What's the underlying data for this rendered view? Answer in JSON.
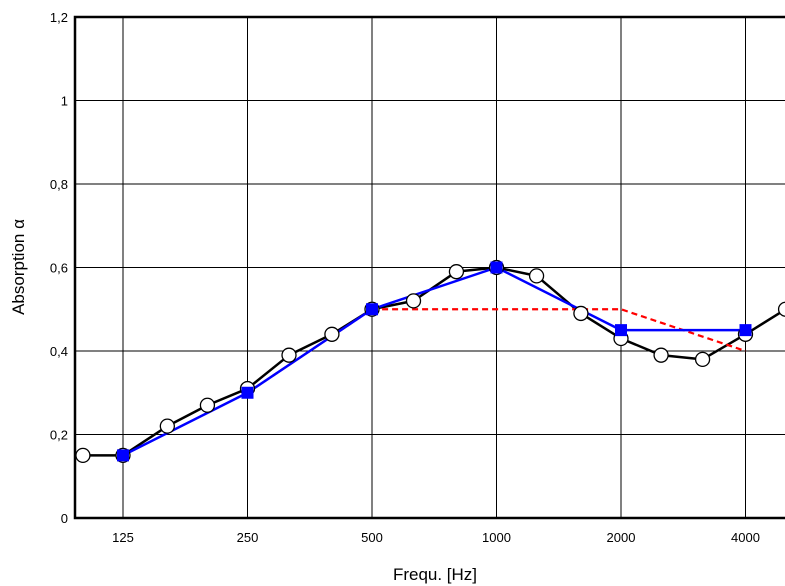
{
  "chart_data": {
    "type": "line",
    "title": "",
    "xlabel": "Frequ. [Hz]",
    "ylabel": "Absorption α",
    "x_scale": "log2",
    "x_tick_labels": [
      "125",
      "250",
      "500",
      "1000",
      "2000",
      "4000"
    ],
    "y_tick_labels": [
      "0",
      "0,2",
      "0,4",
      "0,6",
      "0,8",
      "1",
      "1,2"
    ],
    "ylim": [
      0,
      1.2
    ],
    "grid": true,
    "legend": "none",
    "series": [
      {
        "style": "black line, open circles",
        "color": "#000000",
        "x": [
          100,
          125,
          160,
          200,
          250,
          315,
          400,
          500,
          630,
          800,
          1000,
          1250,
          1600,
          2000,
          2500,
          3150,
          4000,
          5000
        ],
        "y": [
          0.15,
          0.15,
          0.22,
          0.27,
          0.31,
          0.39,
          0.44,
          0.5,
          0.52,
          0.59,
          0.6,
          0.58,
          0.49,
          0.43,
          0.39,
          0.38,
          0.44,
          0.5
        ]
      },
      {
        "style": "blue line, filled squares",
        "color": "#0000FF",
        "x": [
          125,
          250,
          500,
          1000,
          2000,
          4000
        ],
        "y": [
          0.15,
          0.3,
          0.5,
          0.6,
          0.45,
          0.45
        ]
      },
      {
        "style": "red dashed line",
        "color": "#FF0000",
        "x": [
          250,
          500,
          1000,
          2000,
          4000
        ],
        "y": [
          0.3,
          0.5,
          0.5,
          0.5,
          0.4
        ]
      }
    ]
  }
}
